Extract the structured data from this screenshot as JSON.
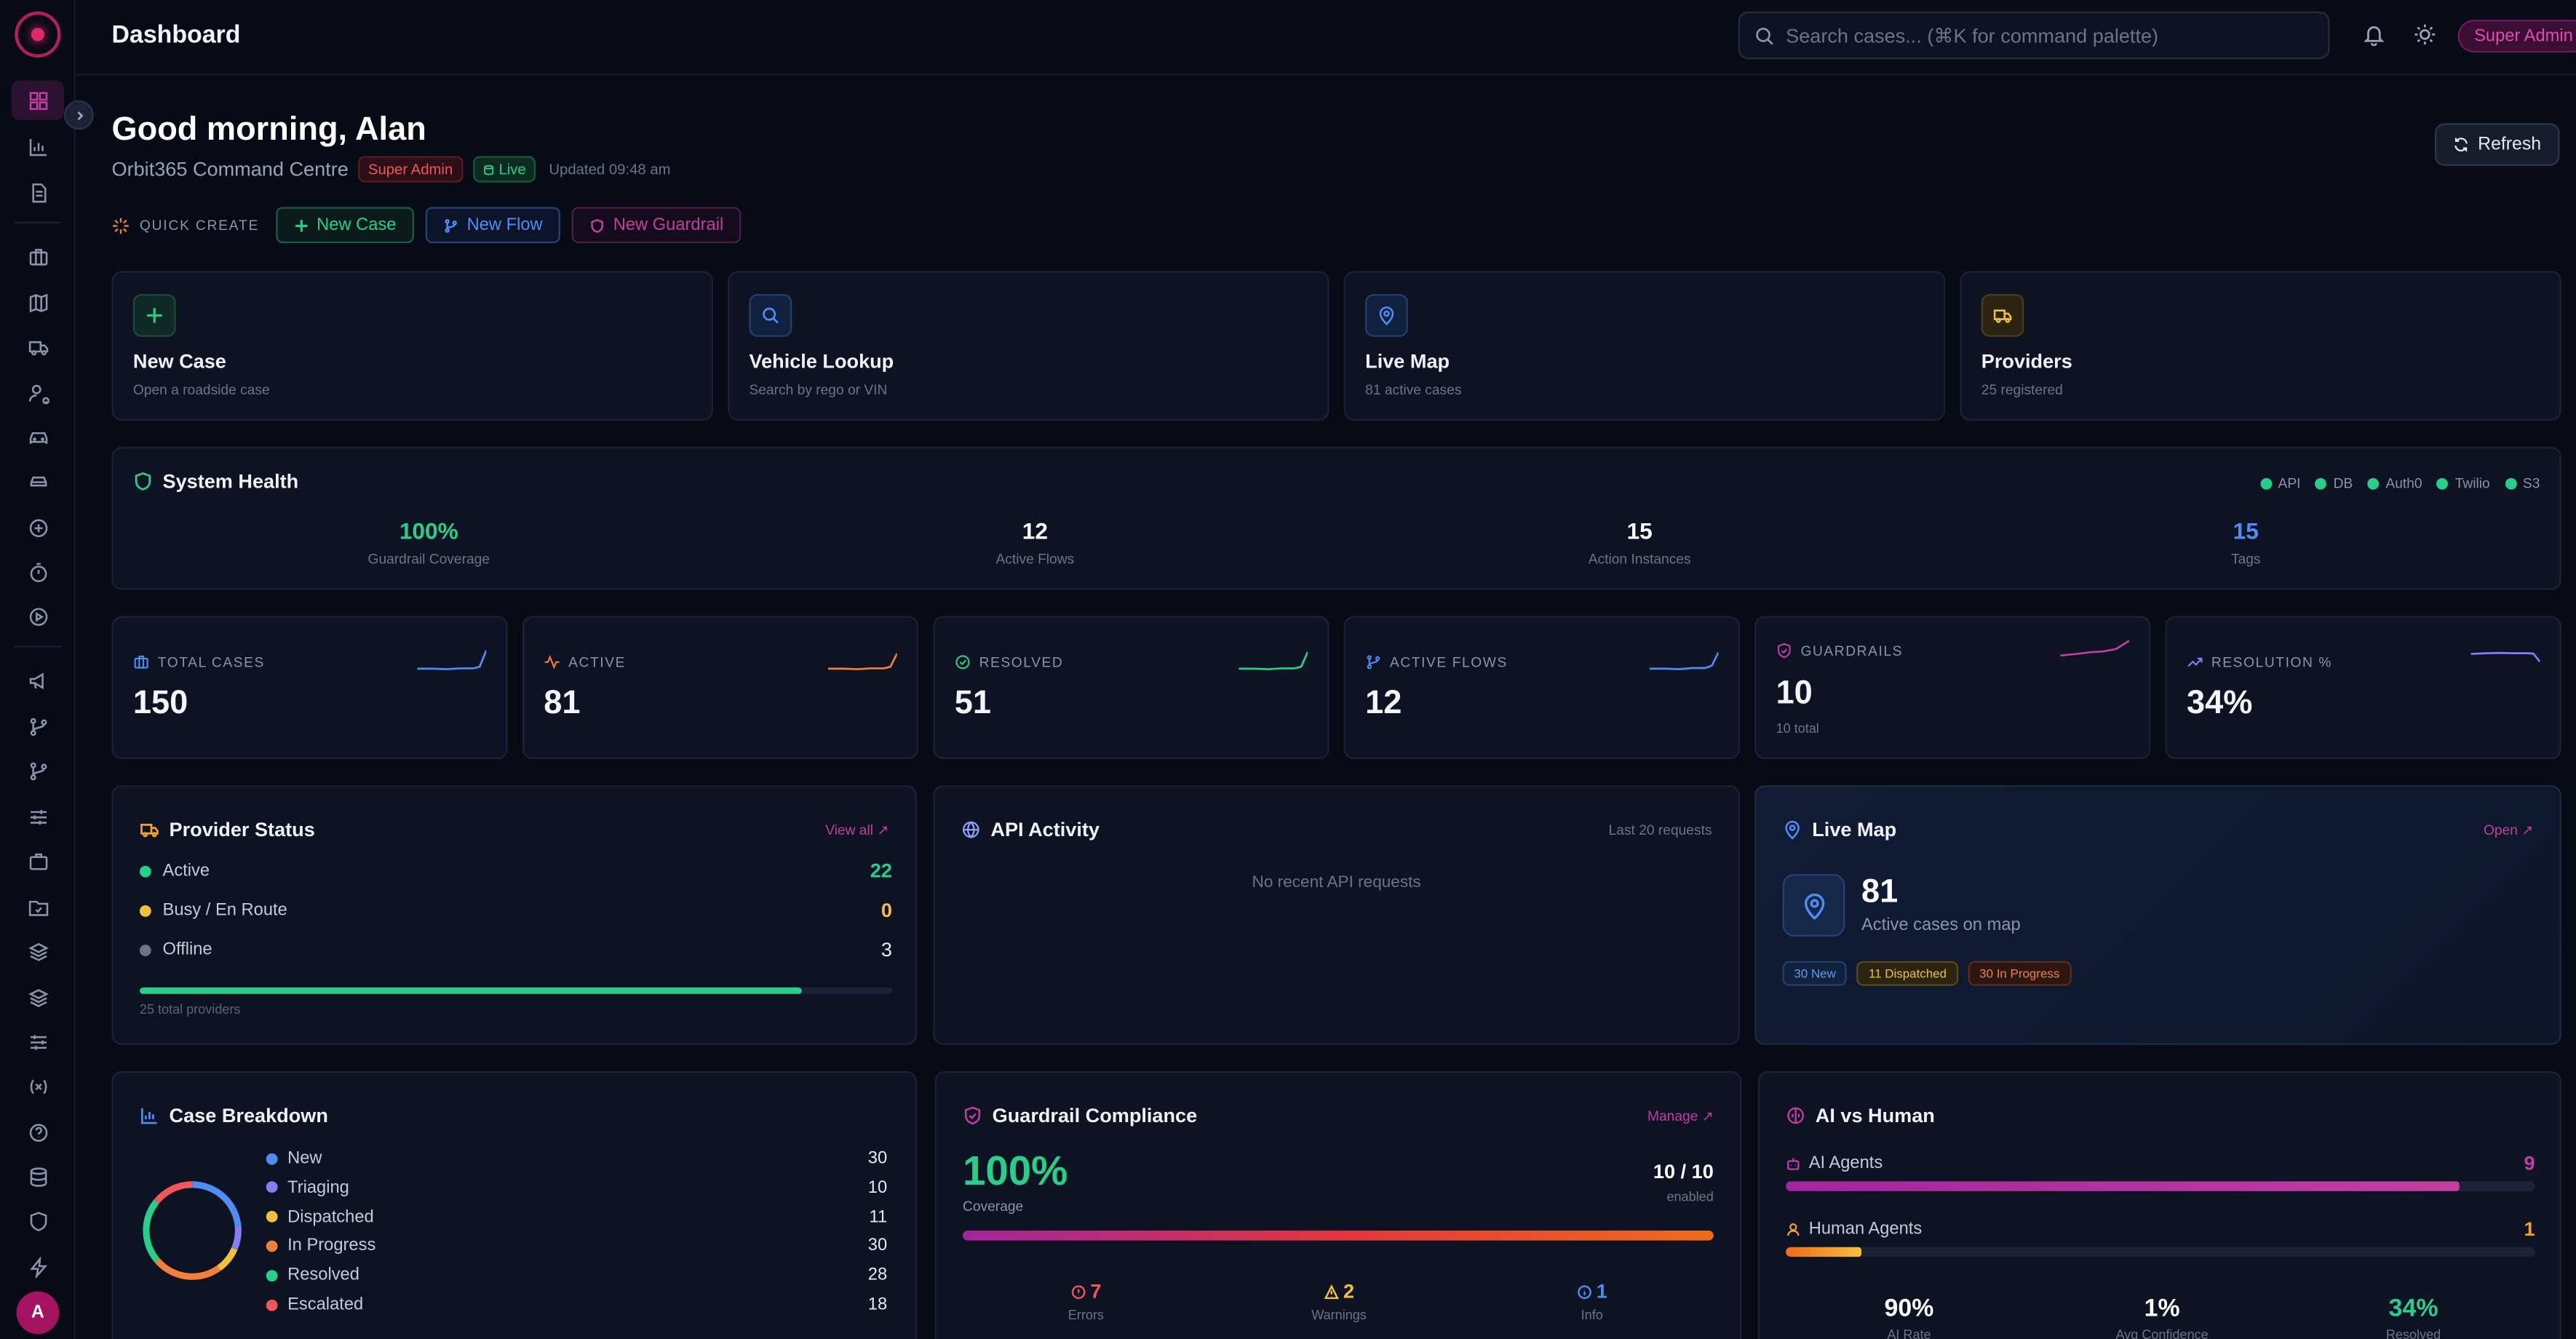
{
  "header": {
    "title": "Dashboard",
    "search_placeholder": "Search cases... (⌘K for command palette)",
    "role": "Super Admin"
  },
  "greeting": {
    "title": "Good morning, Alan",
    "org": "Orbit365 Command Centre",
    "role_badge": "Super Admin",
    "live_badge": "Live",
    "updated": "Updated 09:48 am",
    "refresh_label": "Refresh"
  },
  "quick_create": {
    "label": "QUICK CREATE",
    "buttons": [
      "New Case",
      "New Flow",
      "New Guardrail"
    ]
  },
  "quick_actions": [
    {
      "title": "New Case",
      "sub": "Open a roadside case",
      "icon": "plus-icon",
      "color": "#26d08a"
    },
    {
      "title": "Vehicle Lookup",
      "sub": "Search by rego or VIN",
      "icon": "search-icon",
      "color": "#4f8df5"
    },
    {
      "title": "Live Map",
      "sub": "81 active cases",
      "icon": "map-pin-icon",
      "color": "#4f8df5"
    },
    {
      "title": "Providers",
      "sub": "25 registered",
      "icon": "truck-icon",
      "color": "#f2c13a"
    }
  ],
  "system_health": {
    "title": "System Health",
    "services": [
      "API",
      "DB",
      "Auth0",
      "Twilio",
      "S3"
    ],
    "stats": [
      {
        "value": "100%",
        "label": "Guardrail Coverage",
        "color": "#26d08a"
      },
      {
        "value": "12",
        "label": "Active Flows",
        "color": "#ffffff"
      },
      {
        "value": "15",
        "label": "Action Instances",
        "color": "#ffffff"
      },
      {
        "value": "15",
        "label": "Tags",
        "color": "#4f8df5"
      }
    ]
  },
  "stat_cards": [
    {
      "label": "TOTAL CASES",
      "value": "150",
      "sub": "",
      "icon": "briefcase-icon",
      "color": "#4f8df5"
    },
    {
      "label": "ACTIVE",
      "value": "81",
      "sub": "",
      "icon": "activity-icon",
      "color": "#f0803a"
    },
    {
      "label": "RESOLVED",
      "value": "51",
      "sub": "",
      "icon": "check-circle-icon",
      "color": "#26d08a"
    },
    {
      "label": "ACTIVE FLOWS",
      "value": "12",
      "sub": "",
      "icon": "flow-icon",
      "color": "#4f8df5"
    },
    {
      "label": "GUARDRAILS",
      "value": "10",
      "sub": "10 total",
      "icon": "shield-icon",
      "color": "#c23fa0"
    },
    {
      "label": "RESOLUTION %",
      "value": "34%",
      "sub": "",
      "icon": "trend-up-icon",
      "color": "#8b7cf6"
    }
  ],
  "provider_status": {
    "title": "Provider Status",
    "link": "View all ↗",
    "rows": [
      {
        "label": "Active",
        "value": "22",
        "color": "#26d08a"
      },
      {
        "label": "Busy / En Route",
        "value": "0",
        "color": "#f2c13a"
      },
      {
        "label": "Offline",
        "value": "3",
        "color": "#e6e9f0"
      }
    ],
    "active_fraction": 0.88,
    "total": "25 total providers"
  },
  "api_activity": {
    "title": "API Activity",
    "meta": "Last 20 requests",
    "empty": "No recent API requests"
  },
  "live_map": {
    "title": "Live Map",
    "link": "Open ↗",
    "value": "81",
    "sub": "Active cases on map",
    "tags": [
      "30 New",
      "11 Dispatched",
      "30 In Progress"
    ]
  },
  "case_breakdown": {
    "title": "Case Breakdown",
    "rows": [
      {
        "label": "New",
        "value": "30",
        "color": "#4f8df5"
      },
      {
        "label": "Triaging",
        "value": "10",
        "color": "#8b7cf6"
      },
      {
        "label": "Dispatched",
        "value": "11",
        "color": "#f2c13a"
      },
      {
        "label": "In Progress",
        "value": "30",
        "color": "#f0803a"
      },
      {
        "label": "Resolved",
        "value": "28",
        "color": "#26d08a"
      },
      {
        "label": "Escalated",
        "value": "18",
        "color": "#f2555a"
      }
    ]
  },
  "guardrail_compliance": {
    "title": "Guardrail Compliance",
    "link": "Manage ↗",
    "percent": "100%",
    "coverage_label": "Coverage",
    "ratio": "10 / 10",
    "enabled_label": "enabled",
    "stats": [
      {
        "value": "7",
        "label": "Errors",
        "color": "#f2555a"
      },
      {
        "value": "2",
        "label": "Warnings",
        "color": "#f2c13a"
      },
      {
        "value": "1",
        "label": "Info",
        "color": "#4f8df5"
      }
    ]
  },
  "ai_vs_human": {
    "title": "AI vs Human",
    "rows": [
      {
        "label": "AI Agents",
        "value": "9",
        "fraction": 0.9,
        "color": "#c23fa0"
      },
      {
        "label": "Human Agents",
        "value": "1",
        "fraction": 0.1,
        "color": "#f2a51e"
      }
    ],
    "stats": [
      {
        "value": "90%",
        "label": "AI Rate",
        "color": "#ffffff"
      },
      {
        "value": "1%",
        "label": "Avg Confidence",
        "color": "#ffffff"
      },
      {
        "value": "34%",
        "label": "Resolved",
        "color": "#26d08a"
      }
    ]
  },
  "sidebar": {
    "avatar_initial": "A"
  }
}
